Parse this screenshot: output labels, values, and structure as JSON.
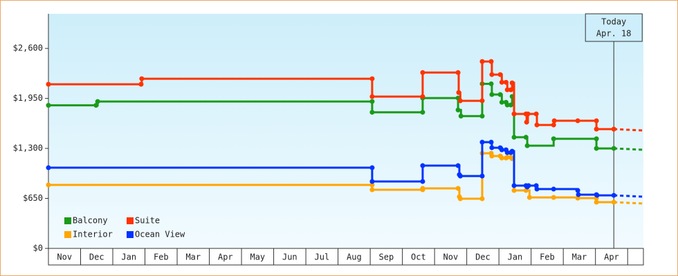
{
  "chart_data": {
    "type": "line",
    "step": true,
    "categories": [
      "Nov",
      "Dec",
      "Jan",
      "Feb",
      "Mar",
      "Apr",
      "May",
      "Jun",
      "Jul",
      "Aug",
      "Sep",
      "Oct",
      "Nov",
      "Dec",
      "Jan",
      "Feb",
      "Mar",
      "Apr"
    ],
    "xlim": [
      0,
      18.49
    ],
    "ylim": [
      0,
      3050
    ],
    "yticks": [
      {
        "value": 0,
        "label": "$0"
      },
      {
        "value": 650,
        "label": "$650"
      },
      {
        "value": 1300,
        "label": "$1,300"
      },
      {
        "value": 1950,
        "label": "$1,950"
      },
      {
        "value": 2600,
        "label": "$2,600"
      }
    ],
    "today": {
      "label": [
        "Today",
        "Apr. 18"
      ],
      "x": 17.57
    },
    "series": [
      {
        "name": "Balcony",
        "color": "#1a9a1a",
        "x": [
          0,
          1.48,
          1.53,
          10.06,
          10.06,
          11.63,
          11.63,
          12.73,
          12.73,
          12.82,
          13.48,
          13.48,
          13.76,
          13.78,
          14.04,
          14.09,
          14.22,
          14.26,
          14.37,
          14.41,
          14.47,
          14.84,
          14.88,
          15.7,
          17.03,
          17.03,
          17.57
        ],
        "values": [
          1860,
          1860,
          1910,
          1910,
          1770,
          1770,
          1955,
          1955,
          1800,
          1720,
          1720,
          2140,
          2140,
          2000,
          2000,
          1900,
          1900,
          1865,
          1865,
          1975,
          1445,
          1445,
          1335,
          1425,
          1425,
          1300,
          1300
        ]
      },
      {
        "name": "Suite",
        "color": "#ff3300",
        "x": [
          0,
          2.88,
          2.9,
          10.06,
          10.06,
          11.63,
          11.63,
          12.73,
          12.75,
          12.8,
          13.48,
          13.48,
          13.76,
          13.78,
          14.04,
          14.09,
          14.22,
          14.26,
          14.37,
          14.41,
          14.47,
          14.84,
          14.86,
          14.9,
          15.16,
          15.18,
          15.7,
          15.72,
          16.45,
          17.03,
          17.03,
          17.57
        ],
        "values": [
          2134,
          2134,
          2206,
          2206,
          1973,
          1973,
          2286,
          2286,
          2026,
          1919,
          1919,
          2430,
          2430,
          2260,
          2260,
          2160,
          2160,
          2062,
          2062,
          2152,
          1748,
          1748,
          1641,
          1748,
          1748,
          1605,
          1605,
          1659,
          1659,
          1659,
          1551,
          1551
        ]
      },
      {
        "name": "Interior",
        "color": "#ffa500",
        "x": [
          0,
          10.06,
          10.06,
          11.63,
          11.63,
          12.73,
          12.77,
          12.8,
          13.48,
          13.48,
          13.76,
          13.78,
          14.04,
          14.09,
          14.22,
          14.26,
          14.37,
          14.41,
          14.47,
          14.84,
          14.95,
          15.7,
          16.45,
          17.03,
          17.03,
          17.57
        ],
        "values": [
          825,
          825,
          762,
          762,
          780,
          780,
          672,
          646,
          646,
          1237,
          1237,
          1201,
          1201,
          1175,
          1175,
          1184,
          1184,
          1166,
          753,
          753,
          663,
          663,
          654,
          654,
          601,
          601
        ]
      },
      {
        "name": "Ocean View",
        "color": "#0033ff",
        "x": [
          0,
          10.06,
          10.06,
          11.63,
          11.63,
          12.73,
          12.77,
          12.8,
          13.48,
          13.48,
          13.76,
          13.78,
          14.04,
          14.09,
          14.22,
          14.26,
          14.37,
          14.41,
          14.47,
          14.84,
          14.88,
          14.92,
          15.16,
          15.18,
          15.7,
          16.45,
          16.47,
          17.03,
          17.05,
          17.57
        ],
        "values": [
          1049,
          1049,
          870,
          870,
          1076,
          1076,
          959,
          941,
          941,
          1381,
          1381,
          1309,
          1309,
          1282,
          1282,
          1246,
          1246,
          1264,
          816,
          816,
          798,
          816,
          816,
          771,
          771,
          753,
          699,
          699,
          690,
          690
        ]
      }
    ]
  }
}
